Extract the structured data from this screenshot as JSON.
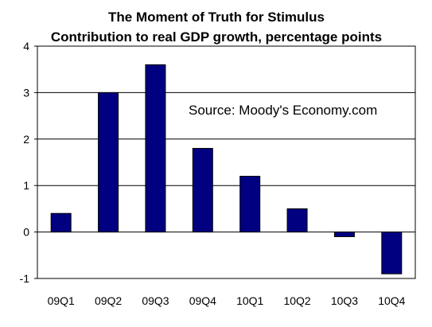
{
  "chart_data": {
    "type": "bar",
    "title": "The Moment of Truth for Stimulus",
    "subtitle": "Contribution to real GDP growth, percentage points",
    "annotation": "Source: Moody's Economy.com",
    "categories": [
      "09Q1",
      "09Q2",
      "09Q3",
      "09Q4",
      "10Q1",
      "10Q2",
      "10Q3",
      "10Q4"
    ],
    "values": [
      0.4,
      3.0,
      3.6,
      1.8,
      1.2,
      0.5,
      -0.1,
      -0.9
    ],
    "ylim": [
      -1,
      4
    ],
    "yticks": [
      "-1",
      "0",
      "1",
      "2",
      "3",
      "4"
    ],
    "grid": true,
    "legend": "none",
    "bar_color": "#000080",
    "xlabel": "",
    "ylabel": ""
  }
}
